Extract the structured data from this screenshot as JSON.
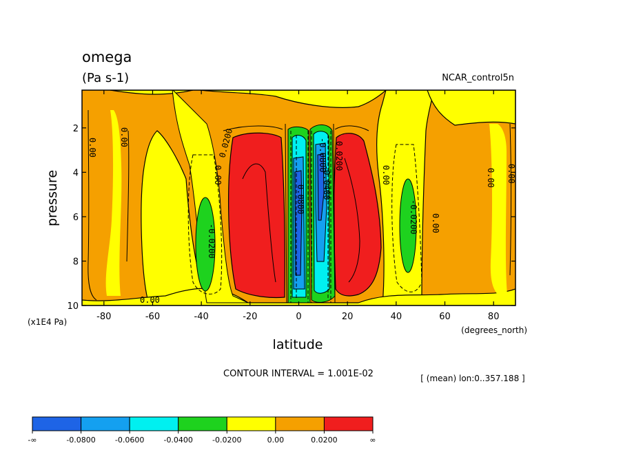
{
  "chart_data": {
    "type": "heatmap",
    "title": "omega",
    "units": "(Pa s-1)",
    "dataset": "NCAR_control5n",
    "xlabel": "latitude",
    "x_units": "(degrees_north)",
    "ylabel": "pressure",
    "y_units": "(x1E4 Pa)",
    "xlim": [
      -89,
      89
    ],
    "ylim": [
      10,
      0.3
    ],
    "x_ticks": [
      -80,
      -60,
      -40,
      -20,
      0,
      20,
      40,
      60,
      80
    ],
    "y_ticks": [
      2,
      4,
      6,
      8,
      10
    ],
    "contour_interval_text": "CONTOUR INTERVAL = 1.001E-02",
    "subset_text": "[ (mean) lon:0..357.188 ]",
    "contour_labels": [
      "0.00",
      "0.0200",
      "-0.0200",
      "0.0800",
      "-0.0800",
      "0.0400",
      "-0.0400"
    ],
    "colorbar": {
      "labels": [
        "-∞",
        "-0.0800",
        "-0.0600",
        "-0.0400",
        "-0.0200",
        "0.00",
        "0.0200",
        "∞"
      ],
      "colors": [
        "#1e64e6",
        "#14a0f0",
        "#00f0f0",
        "#1ed21e",
        "#ffff00",
        "#f5a000",
        "#f01e1e"
      ]
    }
  }
}
